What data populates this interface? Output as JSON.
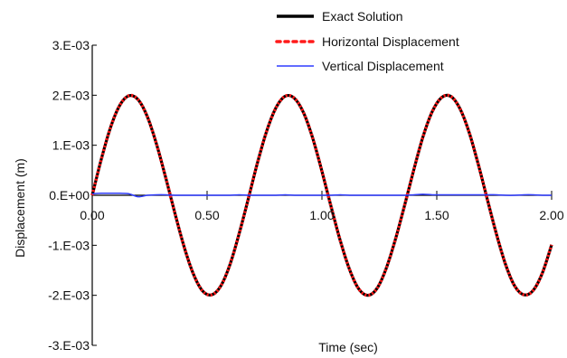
{
  "chart_data": {
    "type": "line",
    "title": "",
    "xlabel": "Time (sec)",
    "ylabel": "Displacement (m)",
    "xlim": [
      0,
      2
    ],
    "ylim": [
      -0.003,
      0.003
    ],
    "x_ticks": [
      0,
      0.5,
      1,
      1.5,
      2
    ],
    "x_tick_labels": [
      "0.00",
      "0.50",
      "1.00",
      "1.50",
      "2.00"
    ],
    "y_ticks": [
      0.003,
      0.002,
      0.001,
      0,
      -0.001,
      -0.002,
      -0.003
    ],
    "y_tick_labels": [
      "3.E-03",
      "2.E-03",
      "1.E-03",
      "0.E+00",
      "-1.E-03",
      "-2.E-03",
      "-3.E-03"
    ],
    "grid": false,
    "legend_position": "top-right",
    "x": [
      0,
      0.04,
      0.08,
      0.12,
      0.16,
      0.2,
      0.24,
      0.28,
      0.32,
      0.36,
      0.4,
      0.44,
      0.48,
      0.52,
      0.56,
      0.6,
      0.64,
      0.68,
      0.72,
      0.76,
      0.8,
      0.84,
      0.88,
      0.92,
      0.96,
      1.0,
      1.04,
      1.08,
      1.12,
      1.16,
      1.2,
      1.24,
      1.28,
      1.32,
      1.36,
      1.4,
      1.44,
      1.48,
      1.52,
      1.56,
      1.6,
      1.64,
      1.68,
      1.72,
      1.76,
      1.8,
      1.84,
      1.88,
      1.92,
      1.96,
      2.0
    ],
    "series": [
      {
        "name": "Exact Solution",
        "color": "#000000",
        "style": "solid",
        "values": [
          0.0,
          0.00073,
          0.00136,
          0.0018,
          0.00199,
          0.00191,
          0.00157,
          0.00102,
          0.00035,
          -0.00036,
          -0.00103,
          -0.00157,
          -0.00191,
          -0.00199,
          -0.00181,
          -0.00138,
          -0.00076,
          -6e-05,
          0.00066,
          0.00129,
          0.00175,
          0.00198,
          0.00194,
          0.00165,
          0.00114,
          0.00048,
          -0.00023,
          -0.00091,
          -0.00148,
          -0.00187,
          -0.002,
          -0.00186,
          -0.00146,
          -0.00088,
          -0.0002,
          0.00051,
          0.00117,
          0.00167,
          0.00195,
          0.00198,
          0.00174,
          0.00127,
          0.00063,
          -8e-05,
          -0.00078,
          -0.00139,
          -0.00182,
          -0.00199,
          -0.0019,
          -0.00155,
          -0.00099
        ]
      },
      {
        "name": "Horizontal Displacement",
        "color": "#ff1a1a",
        "style": "dotted",
        "values": [
          0.0,
          0.00073,
          0.00136,
          0.0018,
          0.00199,
          0.00191,
          0.00157,
          0.00102,
          0.00035,
          -0.00036,
          -0.00103,
          -0.00157,
          -0.00191,
          -0.00199,
          -0.00181,
          -0.00138,
          -0.00076,
          -6e-05,
          0.00066,
          0.00129,
          0.00175,
          0.00198,
          0.00194,
          0.00165,
          0.00114,
          0.00048,
          -0.00023,
          -0.00091,
          -0.00148,
          -0.00187,
          -0.002,
          -0.00186,
          -0.00146,
          -0.00088,
          -0.0002,
          0.00051,
          0.00117,
          0.00167,
          0.00195,
          0.00198,
          0.00174,
          0.00127,
          0.00063,
          -8e-05,
          -0.00078,
          -0.00139,
          -0.00182,
          -0.00199,
          -0.0019,
          -0.00155,
          -0.00099
        ]
      },
      {
        "name": "Vertical Displacement",
        "color": "#2f3cff",
        "style": "solid",
        "values": [
          3e-05,
          4e-05,
          4e-05,
          4e-05,
          3e-05,
          -3e-05,
          0.0,
          1e-05,
          1e-05,
          0.0,
          0.0,
          0.0,
          0.0,
          0.0,
          0.0,
          0.0,
          1e-05,
          0.0,
          0.0,
          0.0,
          0.0,
          1e-05,
          0.0,
          0.0,
          0.0,
          0.0,
          0.0,
          1e-05,
          0.0,
          0.0,
          0.0,
          0.0,
          0.0,
          0.0,
          0.0,
          1e-05,
          2e-05,
          1e-05,
          1e-05,
          1e-05,
          1e-05,
          1e-05,
          1e-05,
          1e-05,
          1e-05,
          0.0,
          0.0,
          1e-05,
          1e-05,
          0.0,
          0.0
        ]
      }
    ]
  }
}
